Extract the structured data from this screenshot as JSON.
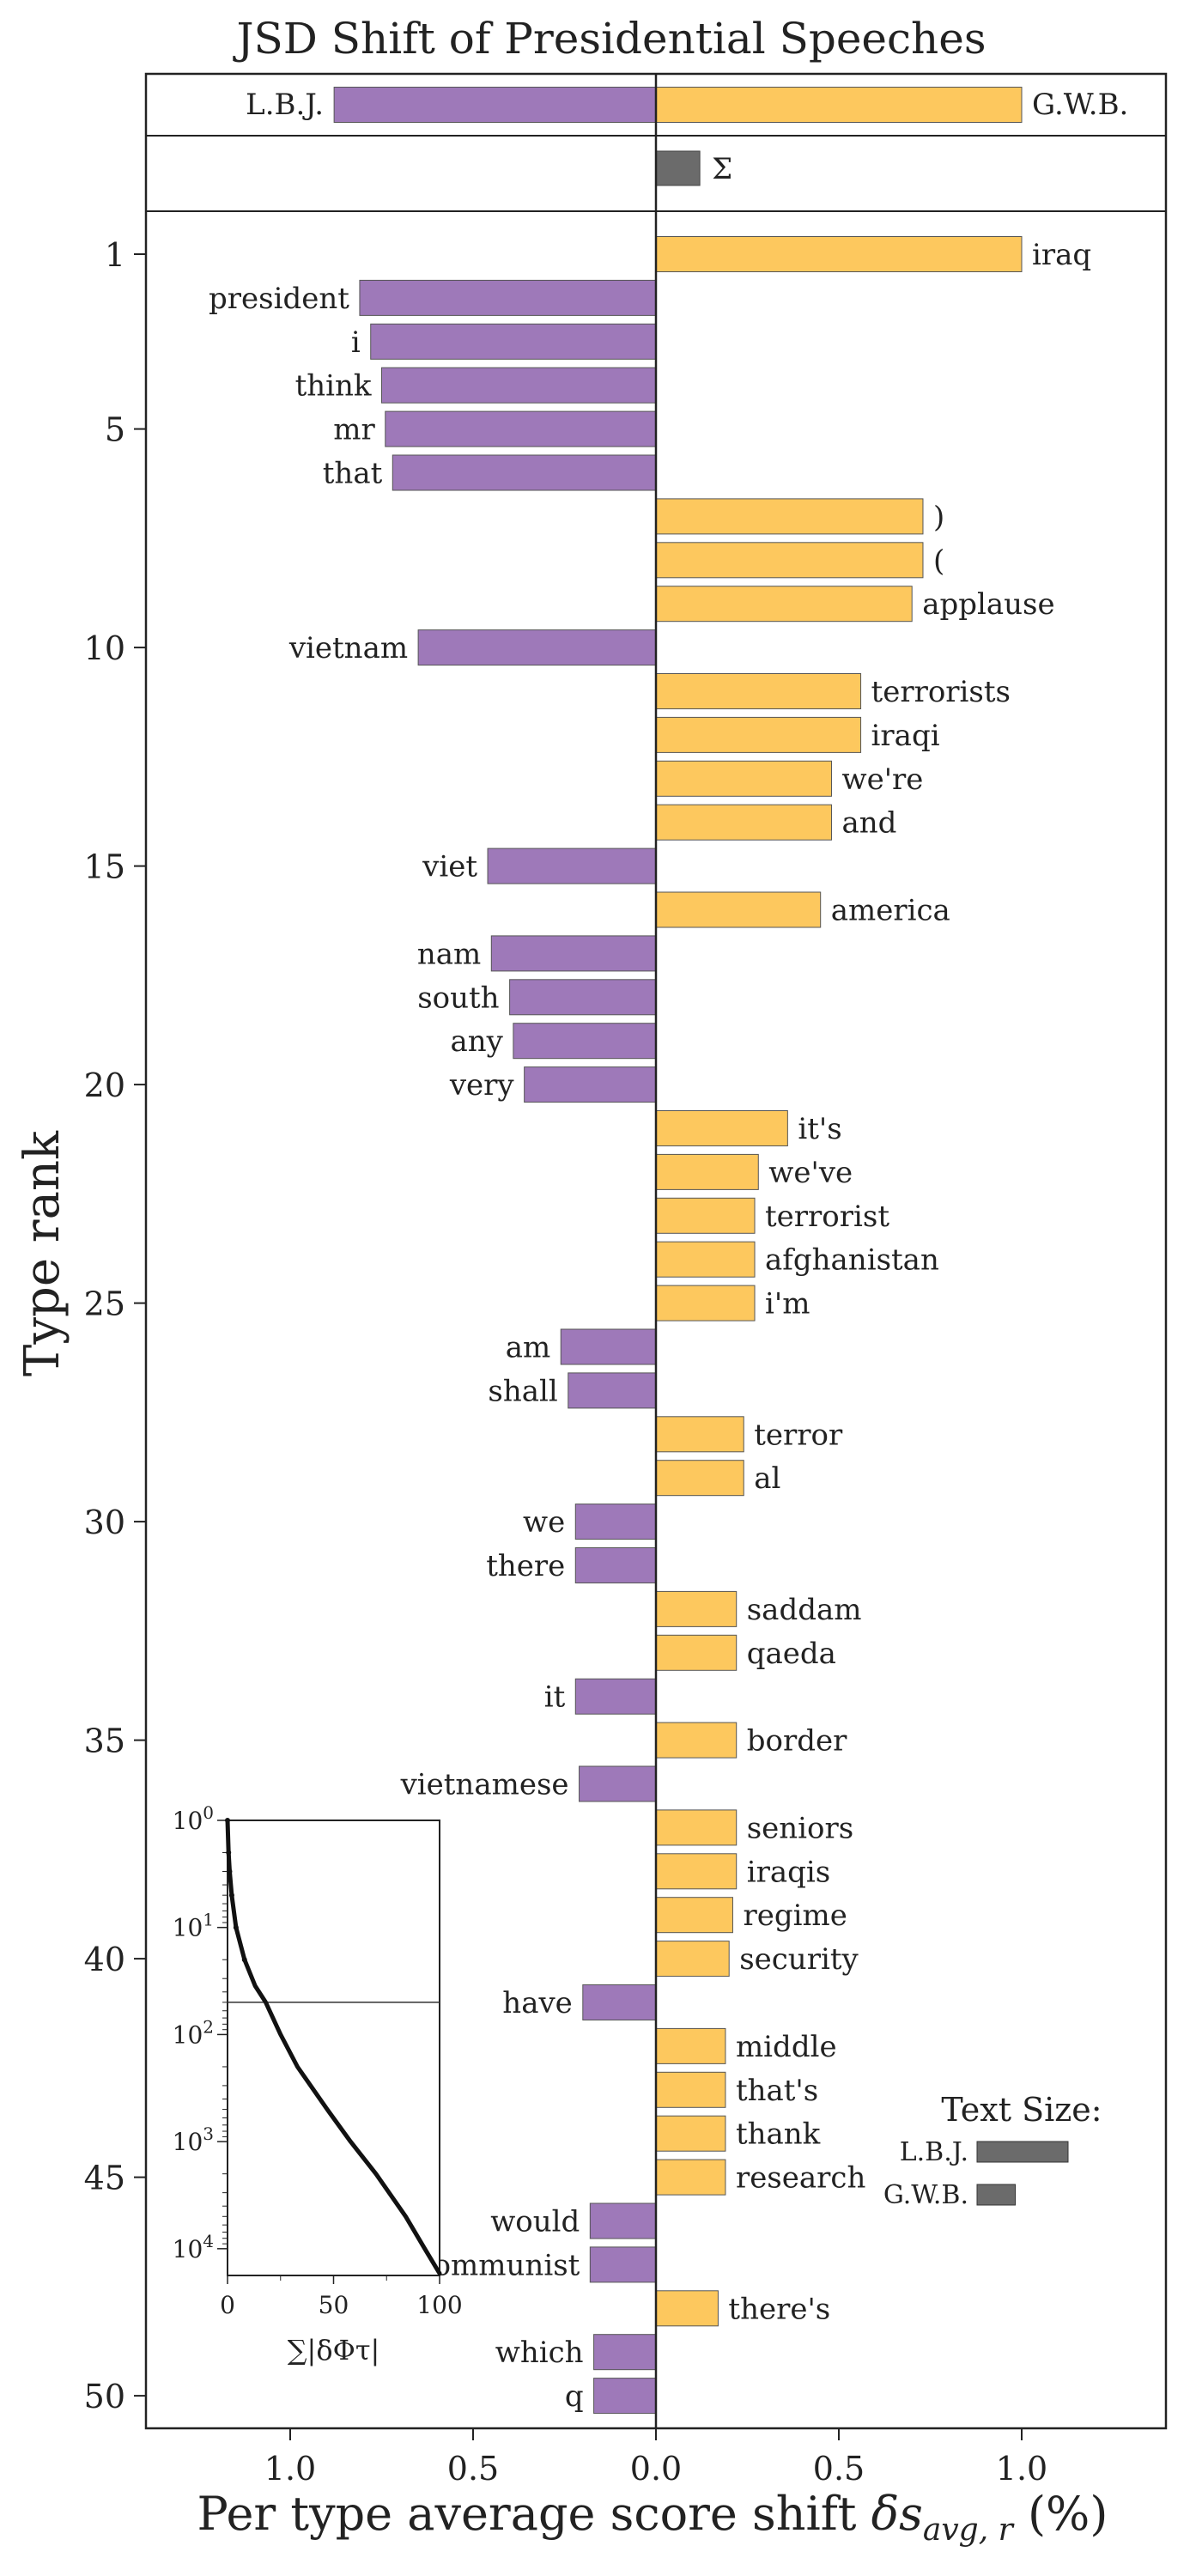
{
  "chart_data": {
    "type": "bar",
    "title": "JSD Shift of Presidential Speeches",
    "xlabel": "Per type average score shift",
    "xlabel_symbol": "δs",
    "xlabel_subscript": "avg, r",
    "xlabel_unit": "(%)",
    "ylabel": "Type rank",
    "xlim": [
      -1.4,
      1.4
    ],
    "x_ticks": [
      {
        "value": -1.0,
        "label": "1.0"
      },
      {
        "value": -0.5,
        "label": "0.5"
      },
      {
        "value": 0.0,
        "label": "0.0"
      },
      {
        "value": 0.5,
        "label": "0.5"
      },
      {
        "value": 1.0,
        "label": "1.0"
      }
    ],
    "y_ticks": [
      1,
      5,
      10,
      15,
      20,
      25,
      30,
      35,
      40,
      45,
      50
    ],
    "colors": {
      "lbj": "#9e79b9",
      "gwb": "#fdc85e",
      "sum": "#6b6b6b",
      "axis": "#222222"
    },
    "summary": {
      "left_label": "L.B.J.",
      "right_label": "G.W.B.",
      "left_value": -0.88,
      "right_value": 1.0,
      "sum_label": "Σ",
      "sum_value": 0.12
    },
    "types": [
      {
        "rank": 1,
        "word": "iraq",
        "value": 1.0
      },
      {
        "rank": 2,
        "word": "president",
        "value": -0.81
      },
      {
        "rank": 3,
        "word": "i",
        "value": -0.78
      },
      {
        "rank": 4,
        "word": "think",
        "value": -0.75
      },
      {
        "rank": 5,
        "word": "mr",
        "value": -0.74
      },
      {
        "rank": 6,
        "word": "that",
        "value": -0.72
      },
      {
        "rank": 7,
        "word": ")",
        "value": 0.73
      },
      {
        "rank": 8,
        "word": "(",
        "value": 0.73
      },
      {
        "rank": 9,
        "word": "applause",
        "value": 0.7
      },
      {
        "rank": 10,
        "word": "vietnam",
        "value": -0.65
      },
      {
        "rank": 11,
        "word": "terrorists",
        "value": 0.56
      },
      {
        "rank": 12,
        "word": "iraqi",
        "value": 0.56
      },
      {
        "rank": 13,
        "word": "we're",
        "value": 0.48
      },
      {
        "rank": 14,
        "word": "and",
        "value": 0.48
      },
      {
        "rank": 15,
        "word": "viet",
        "value": -0.46
      },
      {
        "rank": 16,
        "word": "america",
        "value": 0.45
      },
      {
        "rank": 17,
        "word": "nam",
        "value": -0.45
      },
      {
        "rank": 18,
        "word": "south",
        "value": -0.4
      },
      {
        "rank": 19,
        "word": "any",
        "value": -0.39
      },
      {
        "rank": 20,
        "word": "very",
        "value": -0.36
      },
      {
        "rank": 21,
        "word": "it's",
        "value": 0.36
      },
      {
        "rank": 22,
        "word": "we've",
        "value": 0.28
      },
      {
        "rank": 23,
        "word": "terrorist",
        "value": 0.27
      },
      {
        "rank": 24,
        "word": "afghanistan",
        "value": 0.27
      },
      {
        "rank": 25,
        "word": "i'm",
        "value": 0.27
      },
      {
        "rank": 26,
        "word": "am",
        "value": -0.26
      },
      {
        "rank": 27,
        "word": "shall",
        "value": -0.24
      },
      {
        "rank": 28,
        "word": "terror",
        "value": 0.24
      },
      {
        "rank": 29,
        "word": "al",
        "value": 0.24
      },
      {
        "rank": 30,
        "word": "we",
        "value": -0.22
      },
      {
        "rank": 31,
        "word": "there",
        "value": -0.22
      },
      {
        "rank": 32,
        "word": "saddam",
        "value": 0.22
      },
      {
        "rank": 33,
        "word": "qaeda",
        "value": 0.22
      },
      {
        "rank": 34,
        "word": "it",
        "value": -0.22
      },
      {
        "rank": 35,
        "word": "border",
        "value": 0.22
      },
      {
        "rank": 36,
        "word": "vietnamese",
        "value": -0.21
      },
      {
        "rank": 37,
        "word": "seniors",
        "value": 0.22
      },
      {
        "rank": 38,
        "word": "iraqis",
        "value": 0.22
      },
      {
        "rank": 39,
        "word": "regime",
        "value": 0.21
      },
      {
        "rank": 40,
        "word": "security",
        "value": 0.2
      },
      {
        "rank": 41,
        "word": "have",
        "value": -0.2
      },
      {
        "rank": 42,
        "word": "middle",
        "value": 0.19
      },
      {
        "rank": 43,
        "word": "that's",
        "value": 0.19
      },
      {
        "rank": 44,
        "word": "thank",
        "value": 0.19
      },
      {
        "rank": 45,
        "word": "research",
        "value": 0.19
      },
      {
        "rank": 46,
        "word": "would",
        "value": -0.18
      },
      {
        "rank": 47,
        "word": "communist",
        "value": -0.18
      },
      {
        "rank": 48,
        "word": "there's",
        "value": 0.17
      },
      {
        "rank": 49,
        "word": "which",
        "value": -0.17
      },
      {
        "rank": 50,
        "word": "q",
        "value": -0.17
      }
    ],
    "text_size": {
      "title": "Text Size:",
      "items": [
        {
          "label": "L.B.J.",
          "value": 1.0
        },
        {
          "label": "G.W.B.",
          "value": 0.42
        }
      ]
    },
    "inset": {
      "type": "line",
      "xlabel": "∑|δΦτ|",
      "x_ticks": [
        {
          "value": 0,
          "label": "0"
        },
        {
          "value": 50,
          "label": "50"
        },
        {
          "value": 100,
          "label": "100"
        }
      ],
      "y_scale": "log",
      "y_ticks": [
        {
          "value": 1,
          "label": "10",
          "exp": "0"
        },
        {
          "value": 10,
          "label": "10",
          "exp": "1"
        },
        {
          "value": 100,
          "label": "10",
          "exp": "2"
        },
        {
          "value": 1000,
          "label": "10",
          "exp": "3"
        },
        {
          "value": 10000,
          "label": "10",
          "exp": "4"
        }
      ],
      "hline_rank": 50,
      "curve": [
        [
          0,
          1
        ],
        [
          0.5,
          2
        ],
        [
          1,
          3
        ],
        [
          2,
          5
        ],
        [
          4,
          10
        ],
        [
          8,
          20
        ],
        [
          13,
          35
        ],
        [
          18,
          50
        ],
        [
          25,
          100
        ],
        [
          33,
          200
        ],
        [
          47,
          500
        ],
        [
          58,
          1000
        ],
        [
          70,
          2000
        ],
        [
          84,
          5000
        ],
        [
          93,
          10000
        ],
        [
          100,
          17000
        ]
      ]
    }
  }
}
